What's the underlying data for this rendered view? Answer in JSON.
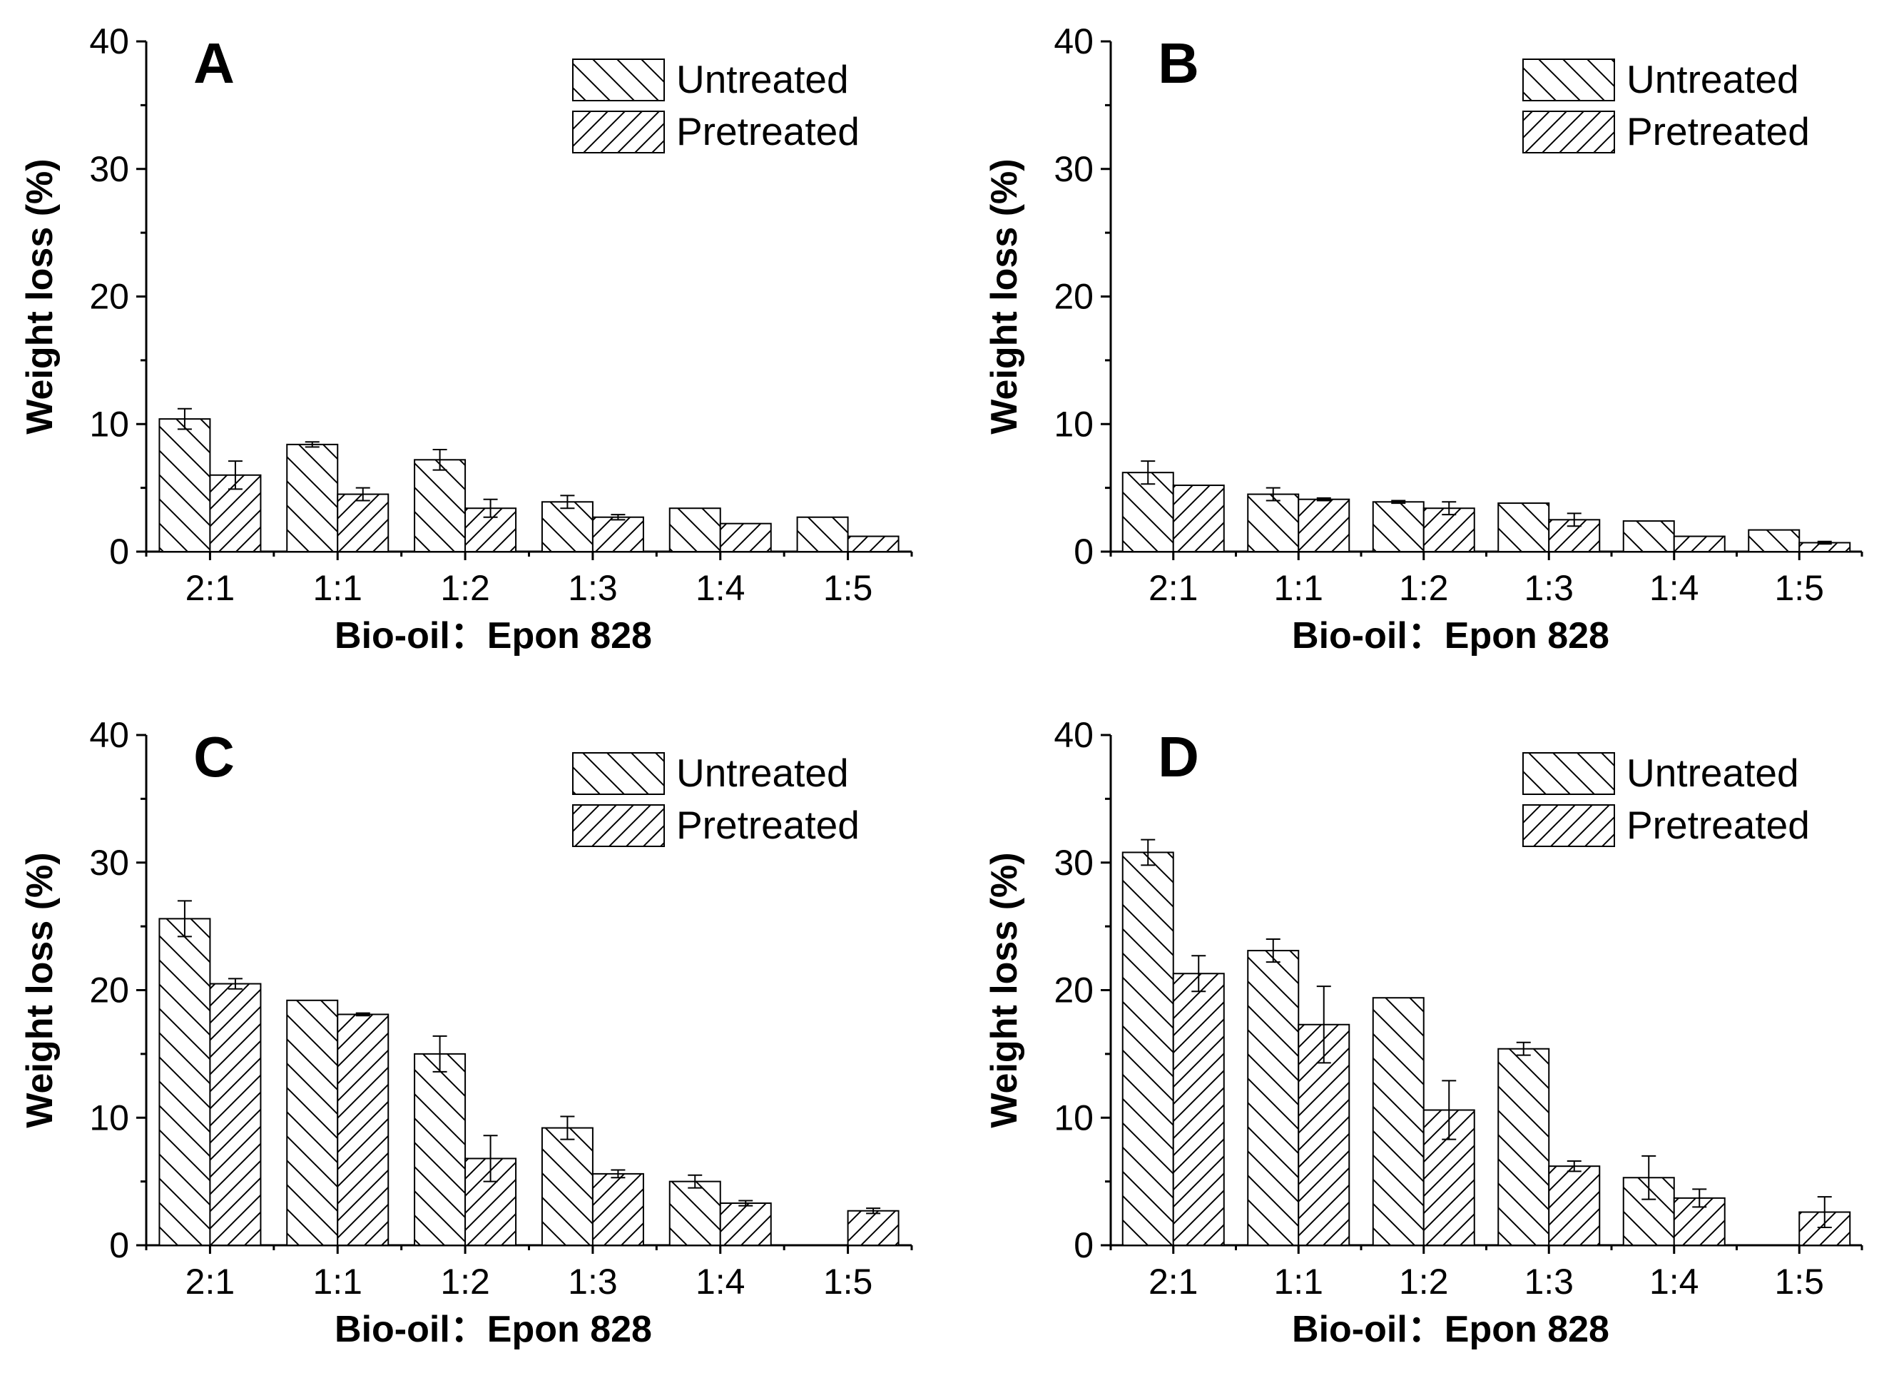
{
  "chart_data": [
    {
      "type": "bar",
      "panel": "A",
      "xlabel": "Bio-oil：Epon 828",
      "ylabel": "Weight loss (%)",
      "ylim": [
        0,
        40
      ],
      "yticks": [
        0,
        10,
        20,
        30,
        40
      ],
      "categories": [
        "2:1",
        "1:1",
        "1:2",
        "1:3",
        "1:4",
        "1:5"
      ],
      "series": [
        {
          "name": "Untreated",
          "values": [
            10.4,
            8.4,
            7.2,
            3.9,
            3.4,
            2.7
          ],
          "errors": [
            0.8,
            0.2,
            0.8,
            0.5,
            0.05,
            0.05
          ]
        },
        {
          "name": "Pretreated",
          "values": [
            6.0,
            4.5,
            3.4,
            2.7,
            2.2,
            1.2
          ],
          "errors": [
            1.1,
            0.5,
            0.7,
            0.2,
            0.05,
            0.05
          ]
        }
      ]
    },
    {
      "type": "bar",
      "panel": "B",
      "xlabel": "Bio-oil：Epon 828",
      "ylabel": "Weight loss (%)",
      "ylim": [
        0,
        40
      ],
      "yticks": [
        0,
        10,
        20,
        30,
        40
      ],
      "categories": [
        "2:1",
        "1:1",
        "1:2",
        "1:3",
        "1:4",
        "1:5"
      ],
      "series": [
        {
          "name": "Untreated",
          "values": [
            6.2,
            4.5,
            3.9,
            3.8,
            2.4,
            1.7
          ],
          "errors": [
            0.9,
            0.5,
            0.1,
            0.05,
            0.05,
            0.05
          ]
        },
        {
          "name": "Pretreated",
          "values": [
            5.2,
            4.1,
            3.4,
            2.5,
            1.2,
            0.7
          ],
          "errors": [
            0.05,
            0.1,
            0.5,
            0.5,
            0.05,
            0.1
          ]
        }
      ]
    },
    {
      "type": "bar",
      "panel": "C",
      "xlabel": "Bio-oil：Epon 828",
      "ylabel": "Weight loss (%)",
      "ylim": [
        0,
        40
      ],
      "yticks": [
        0,
        10,
        20,
        30,
        40
      ],
      "categories": [
        "2:1",
        "1:1",
        "1:2",
        "1:3",
        "1:4",
        "1:5"
      ],
      "series": [
        {
          "name": "Untreated",
          "values": [
            25.6,
            19.2,
            15.0,
            9.2,
            5.0,
            null
          ],
          "errors": [
            1.4,
            0.05,
            1.4,
            0.9,
            0.5,
            null
          ]
        },
        {
          "name": "Pretreated",
          "values": [
            20.5,
            18.1,
            6.8,
            5.6,
            3.3,
            2.7
          ],
          "errors": [
            0.4,
            0.1,
            1.8,
            0.3,
            0.2,
            0.2
          ]
        }
      ]
    },
    {
      "type": "bar",
      "panel": "D",
      "xlabel": "Bio-oil：Epon 828",
      "ylabel": "Weight loss (%)",
      "ylim": [
        0,
        40
      ],
      "yticks": [
        0,
        10,
        20,
        30,
        40
      ],
      "categories": [
        "2:1",
        "1:1",
        "1:2",
        "1:3",
        "1:4",
        "1:5"
      ],
      "series": [
        {
          "name": "Untreated",
          "values": [
            30.8,
            23.1,
            19.4,
            15.4,
            5.3,
            null
          ],
          "errors": [
            1.0,
            0.9,
            0.05,
            0.5,
            1.7,
            null
          ]
        },
        {
          "name": "Pretreated",
          "values": [
            21.3,
            17.3,
            10.6,
            6.2,
            3.7,
            2.6
          ],
          "errors": [
            1.4,
            3.0,
            2.3,
            0.4,
            0.7,
            1.2
          ]
        }
      ]
    }
  ]
}
